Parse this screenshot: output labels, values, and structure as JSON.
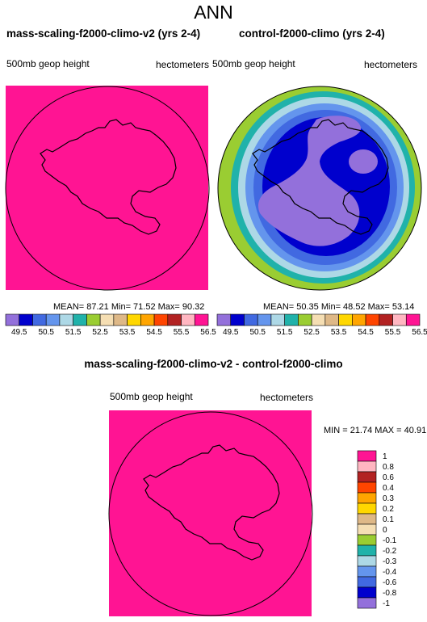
{
  "main_title": "ANN",
  "panels": [
    {
      "title": "mass-scaling-f2000-climo-v2 (yrs 2-4)",
      "left_label": "500mb geop height",
      "right_label": "hectometers",
      "stats": "MEAN=  87.21  Min=  71.52  Max=  90.32"
    },
    {
      "title": "control-f2000-climo (yrs 2-4)",
      "left_label": "500mb geop height",
      "right_label": "hectometers",
      "stats": "MEAN=  50.35  Min=  48.52  Max=  53.14"
    },
    {
      "title": "mass-scaling-f2000-climo-v2 - control-f2000-climo",
      "left_label": "500mb geop height",
      "right_label": "hectometers",
      "stats": "MIN =  21.74  MAX =  40.91"
    }
  ],
  "colors": {
    "out_of_range": "#ff1493",
    "scale": [
      "#9370db",
      "#0000cd",
      "#4169e1",
      "#6495ed",
      "#add8e6",
      "#20b2aa",
      "#9acd32",
      "#f5deb3",
      "#deb887",
      "#ffd700",
      "#ffa500",
      "#ff4500",
      "#b22222",
      "#ffb6c1",
      "#ff1493"
    ]
  },
  "chart_data": [
    {
      "type": "heatmap",
      "title": "mass-scaling-f2000-climo-v2 (yrs 2-4)",
      "variable": "500mb geop height",
      "units": "hectometers",
      "mean": 87.21,
      "min": 71.52,
      "max": 90.32,
      "colorbar_levels": [
        "49.5",
        "50.5",
        "51.5",
        "52.5",
        "53.5",
        "54.5",
        "55.5",
        "56.5"
      ]
    },
    {
      "type": "heatmap",
      "title": "control-f2000-climo (yrs 2-4)",
      "variable": "500mb geop height",
      "units": "hectometers",
      "mean": 50.35,
      "min": 48.52,
      "max": 53.14,
      "colorbar_levels": [
        "49.5",
        "50.5",
        "51.5",
        "52.5",
        "53.5",
        "54.5",
        "55.5",
        "56.5"
      ]
    },
    {
      "type": "heatmap",
      "title": "mass-scaling-f2000-climo-v2 - control-f2000-climo",
      "variable": "500mb geop height",
      "units": "hectometers",
      "min": 21.74,
      "max": 40.91,
      "colorbar_levels": [
        "1",
        "0.8",
        "0.6",
        "0.4",
        "0.3",
        "0.2",
        "0.1",
        "0",
        "-0.1",
        "-0.2",
        "-0.3",
        "-0.4",
        "-0.6",
        "-0.8",
        "-1"
      ]
    }
  ]
}
